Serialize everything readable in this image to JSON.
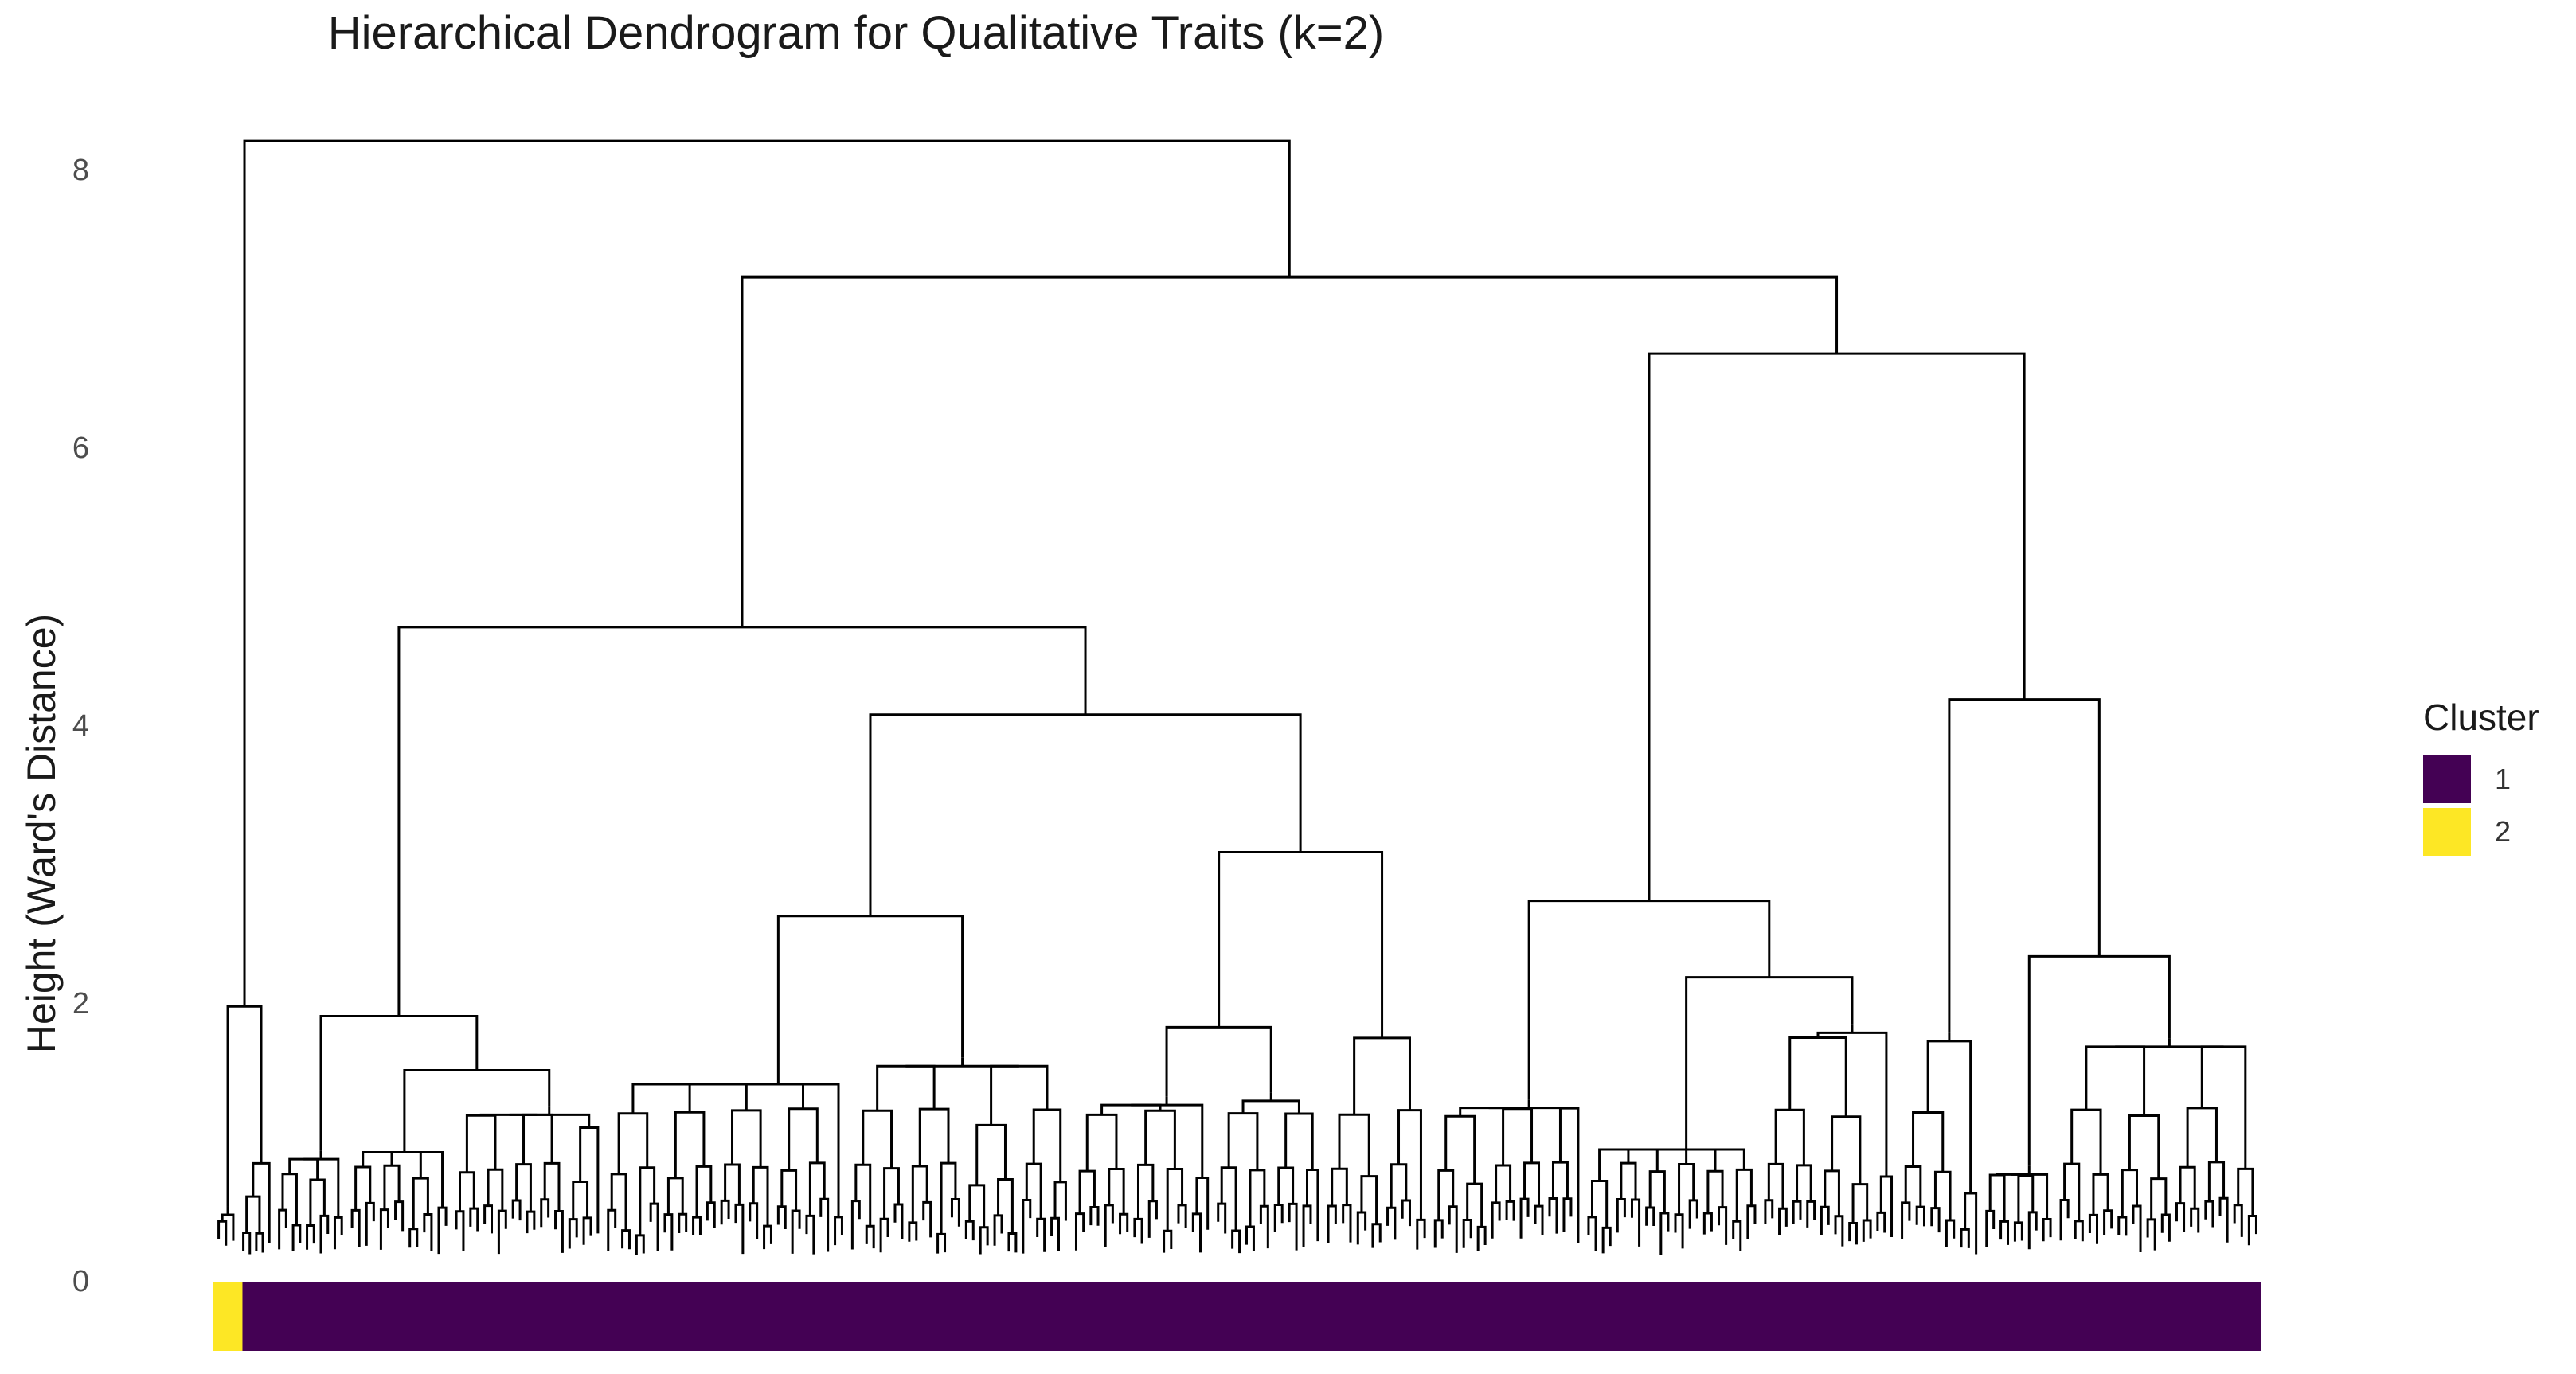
{
  "chart_data": {
    "type": "dendrogram",
    "title": "Hierarchical Dendrogram for Qualitative Traits (k=2)",
    "ylabel": "Height (Ward's Distance)",
    "xlabel": "",
    "ylim": [
      0,
      8.4
    ],
    "yticks": [
      0,
      2,
      4,
      6,
      8
    ],
    "grid": false,
    "legend": {
      "title": "Cluster",
      "placement": "right",
      "entries": [
        {
          "label": "1",
          "color": "#440154"
        },
        {
          "label": "2",
          "color": "#FDE725"
        }
      ]
    },
    "merges": [
      {
        "id": "root",
        "height": 8.2,
        "left": "c2",
        "right": "n7"
      },
      {
        "id": "c2",
        "height": 1.97,
        "left": "c2a",
        "right": "c2b"
      },
      {
        "id": "n7",
        "height": 7.22,
        "left": "n47",
        "right": "n67"
      },
      {
        "id": "n47",
        "height": 4.7,
        "left": "n19",
        "right": "n40"
      },
      {
        "id": "n19",
        "height": 1.9,
        "left": "n09",
        "right": "n15"
      },
      {
        "id": "n15",
        "height": 1.51,
        "left": "n10",
        "right": "n12"
      },
      {
        "id": "n40",
        "height": 4.07,
        "left": "n26",
        "right": "n31"
      },
      {
        "id": "n26",
        "height": 2.62,
        "left": "n145",
        "right": "n16"
      },
      {
        "id": "n31",
        "height": 3.08,
        "left": "n18",
        "right": "n20"
      },
      {
        "id": "n18",
        "height": 1.82,
        "left": "n13",
        "right": "n135"
      },
      {
        "id": "n67",
        "height": 6.67,
        "left": "n27",
        "right": "n42"
      },
      {
        "id": "n27",
        "height": 2.73,
        "left": "n13b",
        "right": "n22"
      },
      {
        "id": "n22",
        "height": 2.18,
        "left": "n10b",
        "right": "n185"
      },
      {
        "id": "n42",
        "height": 4.18,
        "left": "n18b",
        "right": "n23"
      },
      {
        "id": "n23",
        "height": 2.33,
        "left": "n08",
        "right": "n175"
      }
    ],
    "leaf_count": 282,
    "leaf_clusters": [
      {
        "cluster": "2",
        "count": 4
      },
      {
        "cluster": "1",
        "count": 278
      }
    ]
  }
}
